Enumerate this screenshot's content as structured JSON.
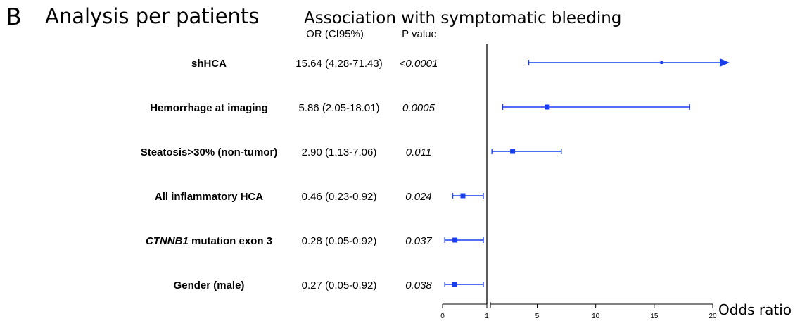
{
  "panel": {
    "letter": "B",
    "title": "Analysis per patients"
  },
  "chart_data": {
    "type": "forest",
    "title": "Association with symptomatic bleeding",
    "xlabel": "Odds ratio",
    "column_headers": {
      "or": "OR (CI95%)",
      "p": "P value"
    },
    "xlim": [
      0,
      20
    ],
    "ticks": [
      0,
      1,
      5,
      10,
      15,
      20
    ],
    "reference_line": 1,
    "series_color": "#1a3ff0",
    "rows": [
      {
        "label_parts": [
          {
            "text": "shHCA",
            "italic": false
          }
        ],
        "or_text": "15.64 (4.28-71.43)",
        "p_text": "<0.0001",
        "or": 15.64,
        "lo": 4.28,
        "hi": 71.43,
        "arrow": true
      },
      {
        "label_parts": [
          {
            "text": "Hemorrhage at imaging",
            "italic": false
          }
        ],
        "or_text": "5.86 (2.05-18.01)",
        "p_text": "0.0005",
        "or": 5.86,
        "lo": 2.05,
        "hi": 18.01,
        "arrow": false
      },
      {
        "label_parts": [
          {
            "text": "Steatosis>30% (non-tumor)",
            "italic": false
          }
        ],
        "or_text": "2.90 (1.13-7.06)",
        "p_text": "0.011",
        "or": 2.9,
        "lo": 1.13,
        "hi": 7.06,
        "arrow": false
      },
      {
        "label_parts": [
          {
            "text": "All inflammatory HCA",
            "italic": false
          }
        ],
        "or_text": "0.46 (0.23-0.92)",
        "p_text": "0.024",
        "or": 0.46,
        "lo": 0.23,
        "hi": 0.92,
        "arrow": false
      },
      {
        "label_parts": [
          {
            "text": "CTNNB1",
            "italic": true
          },
          {
            "text": " mutation exon 3",
            "italic": false
          }
        ],
        "or_text": "0.28 (0.05-0.92)",
        "p_text": "0.037",
        "or": 0.28,
        "lo": 0.05,
        "hi": 0.92,
        "arrow": false
      },
      {
        "label_parts": [
          {
            "text": "Gender (male)",
            "italic": false
          }
        ],
        "or_text": "0.27 (0.05-0.92)",
        "p_text": "0.038",
        "or": 0.27,
        "lo": 0.05,
        "hi": 0.92,
        "arrow": false
      }
    ]
  }
}
